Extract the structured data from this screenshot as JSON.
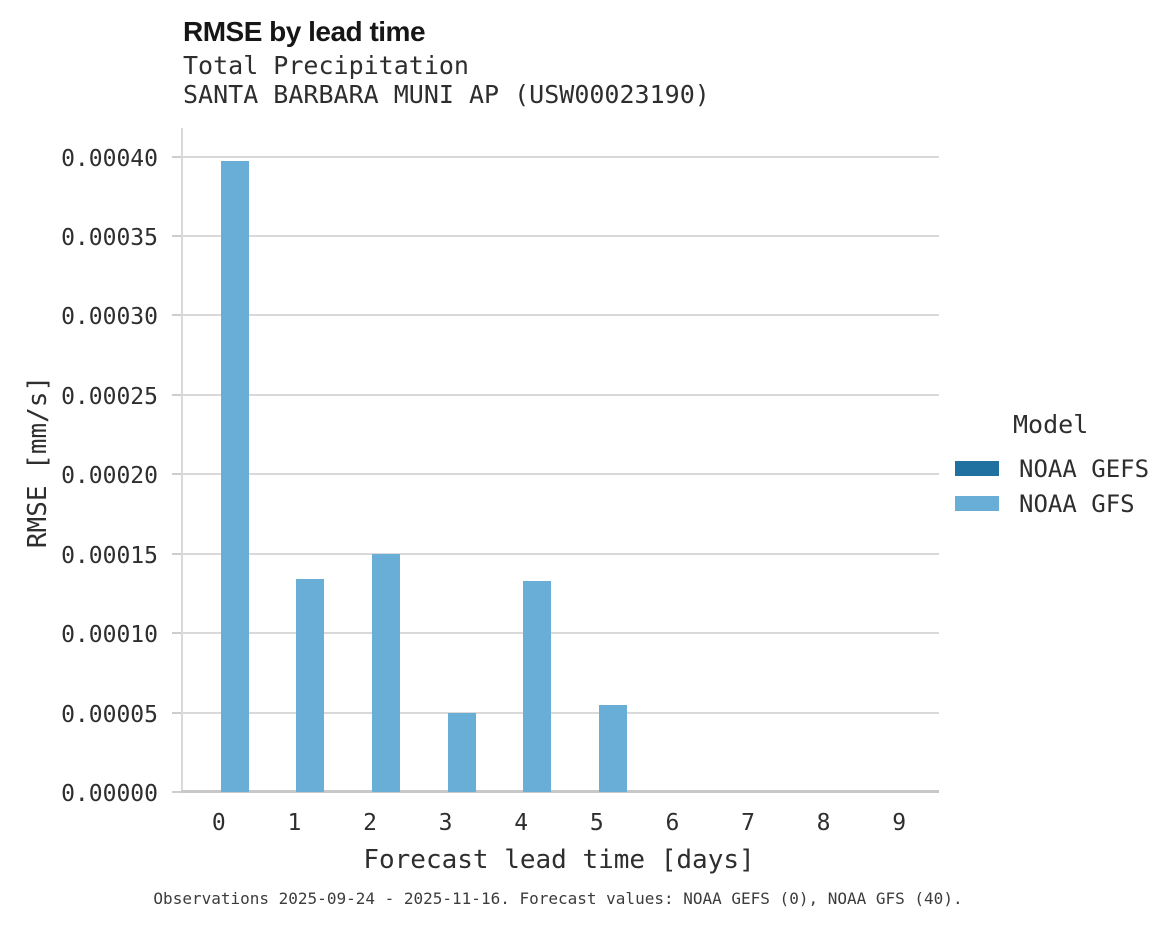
{
  "chart_data": {
    "type": "bar",
    "title": "RMSE by lead time",
    "subtitle_lines": [
      "Total Precipitation",
      "SANTA BARBARA MUNI AP (USW00023190)"
    ],
    "xlabel": "Forecast lead time [days]",
    "ylabel": "RMSE [mm/s]",
    "categories": [
      "0",
      "1",
      "2",
      "3",
      "4",
      "5",
      "6",
      "7",
      "8",
      "9"
    ],
    "series": [
      {
        "name": "NOAA GEFS",
        "color": "#20719f",
        "values": [
          0,
          0,
          0,
          0,
          0,
          0,
          0,
          0,
          0,
          0
        ]
      },
      {
        "name": "NOAA GFS",
        "color": "#68aed7",
        "values": [
          0.000397,
          0.000134,
          0.00015,
          5e-05,
          0.000133,
          5.5e-05,
          0,
          0,
          0,
          0
        ]
      }
    ],
    "ylim": [
      0,
      0.000418
    ],
    "yticks": [
      {
        "value": 0.0,
        "label": "0.00000"
      },
      {
        "value": 5e-05,
        "label": "0.00005"
      },
      {
        "value": 0.0001,
        "label": "0.00010"
      },
      {
        "value": 0.00015,
        "label": "0.00015"
      },
      {
        "value": 0.0002,
        "label": "0.00020"
      },
      {
        "value": 0.00025,
        "label": "0.00025"
      },
      {
        "value": 0.0003,
        "label": "0.00030"
      },
      {
        "value": 0.00035,
        "label": "0.00035"
      },
      {
        "value": 0.0004,
        "label": "0.00040"
      }
    ],
    "grid": "y-only",
    "legend": {
      "title": "Model",
      "position": "right"
    },
    "caption": "Observations 2025-09-24 - 2025-11-16. Forecast values: NOAA GEFS (0), NOAA GFS (40)."
  }
}
